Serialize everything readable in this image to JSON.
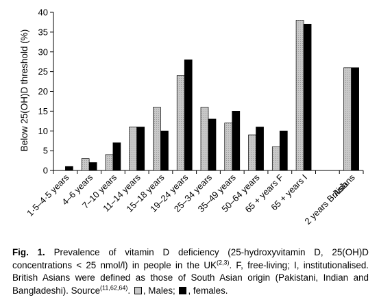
{
  "chart_data": {
    "type": "bar",
    "ylabel": "Below 25(OH)D threshold (%)",
    "ylim": [
      0,
      40
    ],
    "yticks": [
      0,
      5,
      10,
      15,
      20,
      25,
      30,
      35,
      40
    ],
    "grid": false,
    "categories": [
      "1·5–4·5 years",
      "4–6 years",
      "7–10 years",
      "11–14 years",
      "15–18 years",
      "19–24 years",
      "25–34 years",
      "35–49 years",
      "50–64 years",
      "65 + years F",
      "65 + years I",
      "",
      "2 years British Asians"
    ],
    "category_lines": [
      [
        "1·5–4·5 years"
      ],
      [
        "4–6 years"
      ],
      [
        "7–10 years"
      ],
      [
        "11–14 years"
      ],
      [
        "15–18 years"
      ],
      [
        "19–24 years"
      ],
      [
        "25–34 years"
      ],
      [
        "35–49 years"
      ],
      [
        "50–64 years"
      ],
      [
        "65 + years F"
      ],
      [
        "65 + years I"
      ],
      [
        ""
      ],
      [
        "2 years British",
        "Asians"
      ]
    ],
    "series": [
      {
        "name": "Males",
        "color": "#c8c8c8",
        "values": [
          0,
          3,
          4,
          11,
          16,
          24,
          16,
          12,
          9,
          6,
          38,
          null,
          26
        ]
      },
      {
        "name": "females",
        "color": "#000000",
        "values": [
          1,
          2,
          7,
          11,
          10,
          28,
          13,
          15,
          11,
          10,
          37,
          null,
          26
        ]
      }
    ]
  },
  "caption": {
    "label": "Fig. 1.",
    "line1": "Prevalence of vitamin D deficiency (25-hydroxyvitamin D, 25(OH)D concentrations < 25 nmol/l) in people in the UK",
    "ref1": "(2,3)",
    "line2": ". F, free-living; I, institutionalised. British Asians were defined as those of South Asian origin (Pakistani, Indian and Bangladeshi). Source",
    "ref2": "(11,62,64)",
    "males_text": ", Males;",
    "females_text": ", females."
  }
}
